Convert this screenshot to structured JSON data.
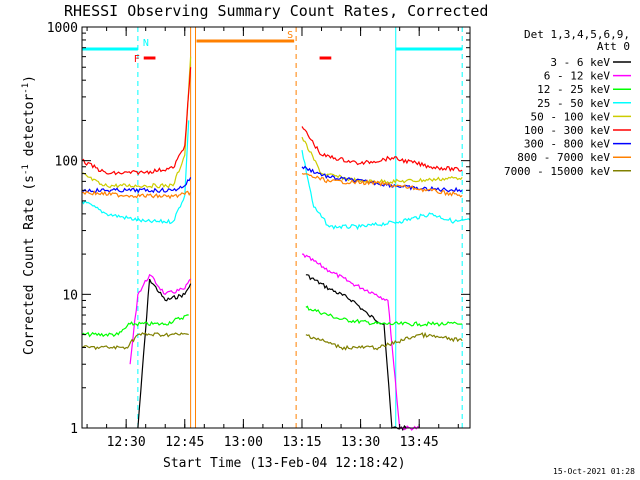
{
  "chart_data": {
    "type": "line",
    "title": "RHESSI Observing Summary Count Rates, Corrected",
    "xlabel": "Start Time (13-Feb-04 12:18:42)",
    "ylabel": "Corrected Count Rate (s",
    "ylabel_sup1": "-1",
    "ylabel_mid": " detector",
    "ylabel_sup2": "-1",
    "ylabel_end": ")",
    "y_scale": "log",
    "ylim": [
      1,
      1000
    ],
    "xlim": [
      "12:18:42",
      "13:58:00"
    ],
    "x_tick_labels": [
      "12:30",
      "12:45",
      "13:00",
      "13:15",
      "13:30",
      "13:45"
    ],
    "y_tick_labels": [
      "1",
      "10",
      "100",
      "1000"
    ],
    "legend_title": "Det 1,3,4,5,6,9,",
    "legend_title2": "Att 0",
    "legend_placement": "right",
    "timestamp": "15-Oct-2021 01:28",
    "series": [
      {
        "name": "3 - 6 keV",
        "color": "#000000",
        "x": [
          "12:18:42",
          "12:33:00",
          "12:36:00",
          "12:40:00",
          "12:45:00",
          "12:46:30",
          "13:14:00",
          "13:16:00",
          "13:22:00",
          "13:28:00",
          "13:32:00",
          "13:36:00",
          "13:38:00",
          "13:42:00"
        ],
        "values": [
          null,
          1,
          13,
          9,
          10,
          12,
          null,
          14,
          11,
          9,
          7,
          6,
          1,
          1
        ]
      },
      {
        "name": "6 - 12 keV",
        "color": "#ff00ff",
        "x": [
          "12:18:42",
          "12:31:00",
          "12:33:00",
          "12:36:00",
          "12:40:00",
          "12:45:00",
          "12:46:30",
          "13:14:00",
          "13:15:00",
          "13:22:00",
          "13:28:00",
          "13:34:00",
          "13:37:00",
          "13:40:00",
          "13:45:00"
        ],
        "values": [
          null,
          3,
          10,
          14,
          10,
          11,
          13,
          null,
          20,
          15,
          12,
          10,
          9,
          1,
          1
        ]
      },
      {
        "name": "12 - 25 keV",
        "color": "#00ff00",
        "x": [
          "12:18:42",
          "12:28:00",
          "12:31:00",
          "12:40:00",
          "12:46:00",
          "13:14:00",
          "13:16:00",
          "13:25:00",
          "13:35:00",
          "13:45:00",
          "13:52:00",
          "13:56:00"
        ],
        "values": [
          5,
          5,
          6,
          6,
          7,
          null,
          8,
          6.5,
          6,
          6,
          6,
          6
        ]
      },
      {
        "name": "25 - 50 keV",
        "color": "#00ffff",
        "x": [
          "12:18:42",
          "12:25:00",
          "12:35:00",
          "12:42:00",
          "12:45:00",
          "12:46:00",
          "13:14:00",
          "13:15:00",
          "13:18:00",
          "13:22:00",
          "13:30:00",
          "13:40:00",
          "13:48:00",
          "13:54:00",
          "13:58:00"
        ],
        "values": [
          50,
          40,
          35,
          35,
          55,
          200,
          null,
          120,
          45,
          32,
          32,
          35,
          40,
          35,
          36
        ]
      },
      {
        "name": "50 - 100 keV",
        "color": "#cccc00",
        "x": [
          "12:18:42",
          "12:24:00",
          "12:35:00",
          "12:42:00",
          "12:45:00",
          "12:46:30",
          "13:14:00",
          "13:15:00",
          "13:20:00",
          "13:30:00",
          "13:40:00",
          "13:48:00",
          "13:56:00"
        ],
        "values": [
          80,
          65,
          65,
          65,
          110,
          600,
          null,
          150,
          80,
          70,
          70,
          72,
          75
        ]
      },
      {
        "name": "100 - 300 keV",
        "color": "#ff0000",
        "x": [
          "12:18:42",
          "12:25:00",
          "12:35:00",
          "12:42:00",
          "12:45:00",
          "12:46:30",
          "13:14:00",
          "13:15:00",
          "13:20:00",
          "13:30:00",
          "13:38:00",
          "13:48:00",
          "13:56:00"
        ],
        "values": [
          100,
          80,
          82,
          88,
          130,
          500,
          null,
          180,
          110,
          95,
          105,
          90,
          85
        ]
      },
      {
        "name": "300 - 800 keV",
        "color": "#0000ff",
        "x": [
          "12:18:42",
          "12:30:00",
          "12:42:00",
          "12:45:00",
          "12:46:30",
          "13:14:00",
          "13:15:00",
          "13:22:00",
          "13:34:00",
          "13:44:00",
          "13:56:00"
        ],
        "values": [
          60,
          60,
          60,
          65,
          75,
          null,
          90,
          75,
          68,
          62,
          60
        ]
      },
      {
        "name": "800 - 7000 keV",
        "color": "#ff8000",
        "x": [
          "12:18:42",
          "12:30:00",
          "12:42:00",
          "12:45:00",
          "12:46:30",
          "13:14:00",
          "13:15:00",
          "13:22:00",
          "13:34:00",
          "13:44:00",
          "13:56:00"
        ],
        "values": [
          58,
          55,
          54,
          56,
          58,
          null,
          80,
          70,
          68,
          62,
          55
        ]
      },
      {
        "name": "7000 - 15000 keV",
        "color": "#808000",
        "x": [
          "12:18:42",
          "12:30:00",
          "12:33:00",
          "12:40:00",
          "12:46:00",
          "13:14:00",
          "13:16:00",
          "13:25:00",
          "13:35:00",
          "13:45:00",
          "13:56:00"
        ],
        "values": [
          4,
          4,
          5,
          5,
          5,
          null,
          5,
          4,
          4,
          5,
          4.5
        ]
      }
    ],
    "flag_bars": [
      {
        "name": "night",
        "label": "N",
        "color": "#00ffff",
        "ranges": [
          [
            "12:18:42",
            "12:33:00"
          ],
          [
            "13:39:00",
            "13:56:00"
          ]
        ]
      },
      {
        "name": "flare",
        "label": "F",
        "color": "#ff0000",
        "ranges": [
          [
            "12:34:30",
            "12:37:30"
          ],
          [
            "13:19:30",
            "13:22:30"
          ]
        ]
      },
      {
        "name": "saa",
        "label": "S",
        "color": "#ff8000",
        "ranges": [
          [
            "12:48:00",
            "13:13:00"
          ]
        ]
      }
    ],
    "vlines": [
      {
        "x": "12:18:42",
        "color": "#00ffff",
        "style": "solid"
      },
      {
        "x": "12:33:00",
        "color": "#00ffff",
        "style": "dashed"
      },
      {
        "x": "12:46:30",
        "color": "#ff8000",
        "style": "solid"
      },
      {
        "x": "12:47:45",
        "color": "#ff8000",
        "style": "solid"
      },
      {
        "x": "13:13:30",
        "color": "#ff8000",
        "style": "dashed"
      },
      {
        "x": "13:39:00",
        "color": "#00ffff",
        "style": "solid"
      },
      {
        "x": "13:56:00",
        "color": "#00ffff",
        "style": "dashed"
      }
    ]
  }
}
